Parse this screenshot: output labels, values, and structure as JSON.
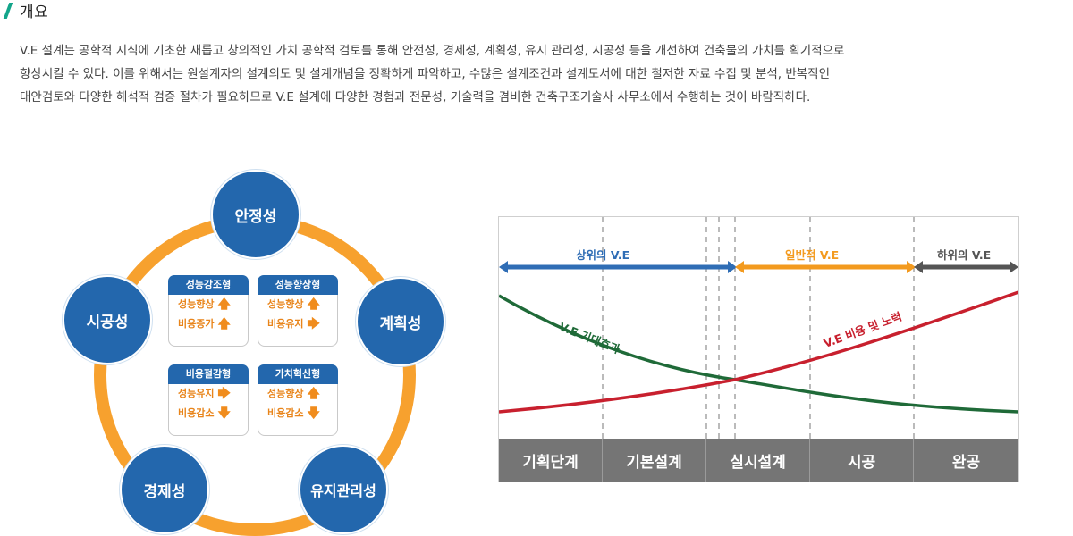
{
  "section": {
    "title": "개요"
  },
  "intro": {
    "lines": [
      "V.E 설계는 공학적 지식에 기초한 새롭고 창의적인 가치 공학적 검토를 통해 안전성, 경제성, 계획성, 유지 관리성, 시공성 등을 개선하여 건축물의 가치를 획기적으로",
      "향상시킬 수 있다. 이를 위해서는 원설계자의 설계의도 및 설계개념을 정확하게 파악하고, 수많은 설계조건과 설계도서에 대한 철저한 자료 수집 및 분석, 반복적인",
      "대안검토와 다양한 해석적 검증 절차가 필요하므로 V.E 설계에 다양한 경험과 전문성, 기술력을 겸비한 건축구조기술사 사무소에서 수행하는 것이 바람직하다."
    ]
  },
  "cycle": {
    "nodes": {
      "top": "안정성",
      "right": "계획성",
      "bottom_right": "유지관리성",
      "bottom_left": "경제성",
      "left": "시공성"
    },
    "cards": [
      {
        "title": "성능강조형",
        "row1": "성능향상",
        "arrow1": "up",
        "row2": "비용증가",
        "arrow2": "up"
      },
      {
        "title": "성능향상형",
        "row1": "성능향상",
        "arrow1": "up",
        "row2": "비용유지",
        "arrow2": "right"
      },
      {
        "title": "비용절감형",
        "row1": "성능유지",
        "arrow1": "right",
        "row2": "비용감소",
        "arrow2": "down"
      },
      {
        "title": "가치혁신형",
        "row1": "성능향상",
        "arrow1": "up",
        "row2": "비용감소",
        "arrow2": "down"
      }
    ],
    "colors": {
      "ring": "#f7a12e",
      "node": "#2367ad",
      "arrow": "#f08c1d"
    }
  },
  "ve_chart": {
    "ranges": [
      {
        "label": "상위의 V.E",
        "color": "#2f6db5"
      },
      {
        "label": "일반적 V.E",
        "color": "#f39a1e"
      },
      {
        "label": "하위의 V.E",
        "color": "#555555"
      }
    ],
    "curves": [
      {
        "label": "V.E 기대효과",
        "color": "#1f6a38",
        "trend": "decreasing"
      },
      {
        "label": "V.E 비용 및 노력",
        "color": "#c8202e",
        "trend": "increasing"
      }
    ],
    "phases": [
      "기획단계",
      "기본설계",
      "실시설계",
      "시공",
      "완공"
    ]
  }
}
